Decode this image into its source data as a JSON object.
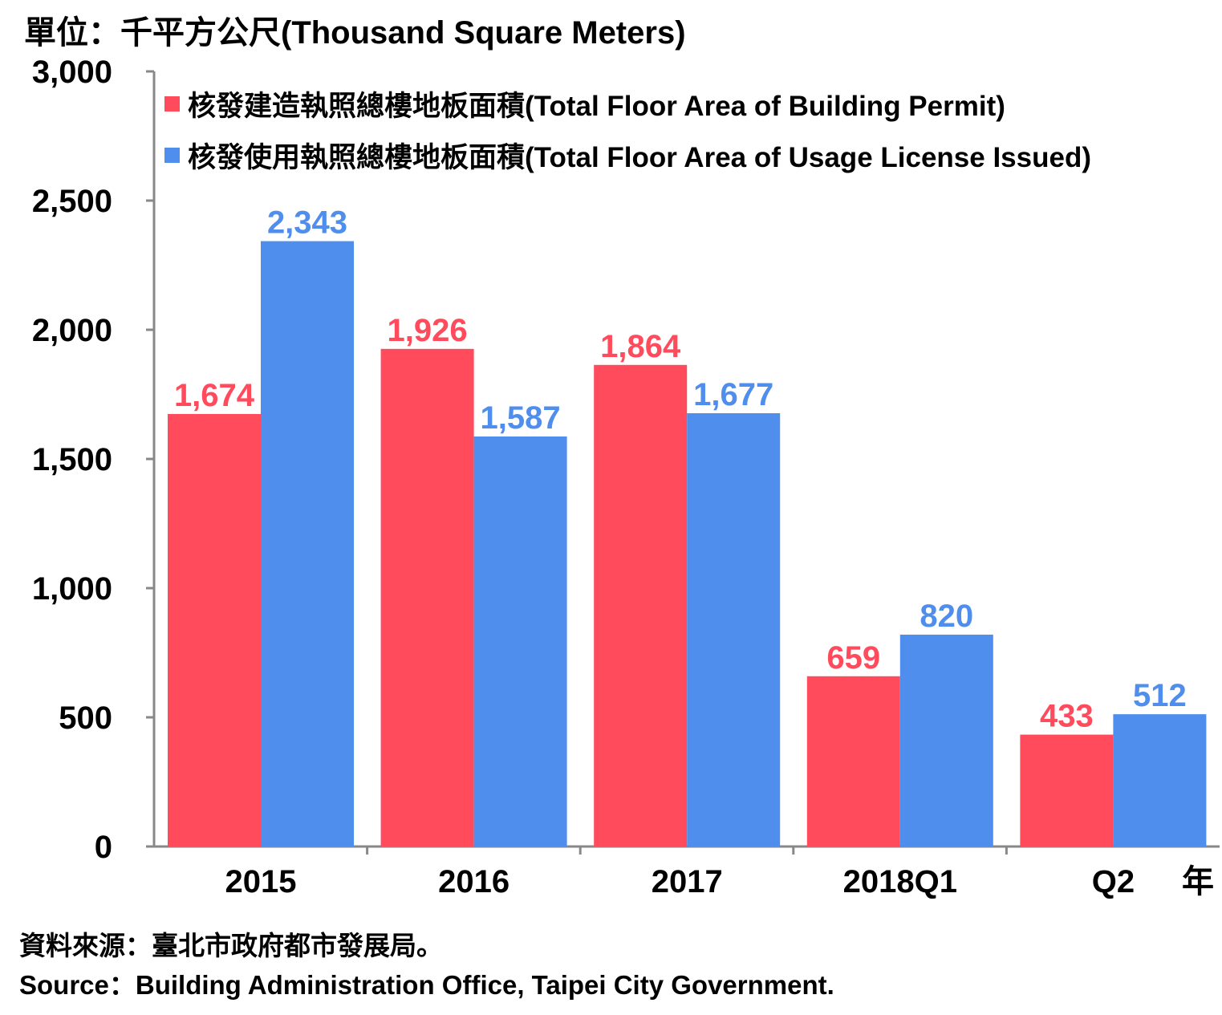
{
  "unit_label": "單位：千平方公尺(Thousand Square Meters)",
  "source_zh": "資料來源：臺北市政府都市發展局。",
  "source_en": "Source：Building Administration Office, Taipei City Government.",
  "colors": {
    "building_permit": "#ff4b5c",
    "usage_license": "#4f8eed",
    "axis": "#888888"
  },
  "chart_data": {
    "type": "bar",
    "categories": [
      "2015",
      "2016",
      "2017",
      "2018Q1",
      "Q2"
    ],
    "x_suffix": "年",
    "ylim": [
      0,
      3000
    ],
    "yticks": [
      0,
      500,
      1000,
      1500,
      2000,
      2500,
      3000
    ],
    "ytick_labels": [
      "0",
      "500",
      "1,000",
      "1,500",
      "2,000",
      "2,500",
      "3,000"
    ],
    "grid": false,
    "legend_position": "top-left",
    "series": [
      {
        "name": "核發建造執照總樓地板面積(Total Floor Area of Building Permit)",
        "values": [
          1674,
          1926,
          1864,
          659,
          433
        ],
        "labels": [
          "1,674",
          "1,926",
          "1,864",
          "659",
          "433"
        ]
      },
      {
        "name": "核發使用執照總樓地板面積(Total Floor Area of Usage License Issued)",
        "values": [
          2343,
          1587,
          1677,
          820,
          512
        ],
        "labels": [
          "2,343",
          "1,587",
          "1,677",
          "820",
          "512"
        ]
      }
    ]
  }
}
